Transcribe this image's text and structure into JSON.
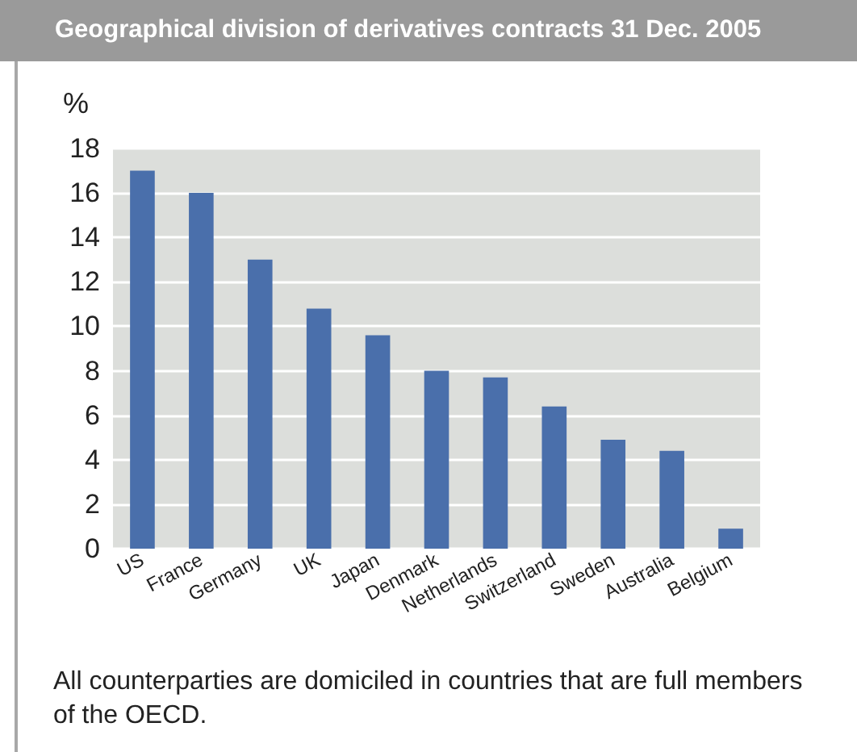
{
  "chart_data": {
    "type": "bar",
    "title": "Geographical division of derivatives contracts 31 Dec. 2005",
    "ylabel": "%",
    "categories": [
      "US",
      "France",
      "Germany",
      "UK",
      "Japan",
      "Denmark",
      "Netherlands",
      "Switzerland",
      "Sweden",
      "Australia",
      "Belgium"
    ],
    "values": [
      17.0,
      16.0,
      13.0,
      10.8,
      9.6,
      8.0,
      7.7,
      6.4,
      4.9,
      4.4,
      0.9
    ],
    "color": "#4a6fab",
    "ylim": [
      0,
      18
    ],
    "yticks": [
      0,
      2,
      4,
      6,
      8,
      10,
      12,
      14,
      16,
      18
    ],
    "grid": "y",
    "annotations": [
      "All counterparties are domiciled in countries that are full members of the OECD."
    ]
  }
}
